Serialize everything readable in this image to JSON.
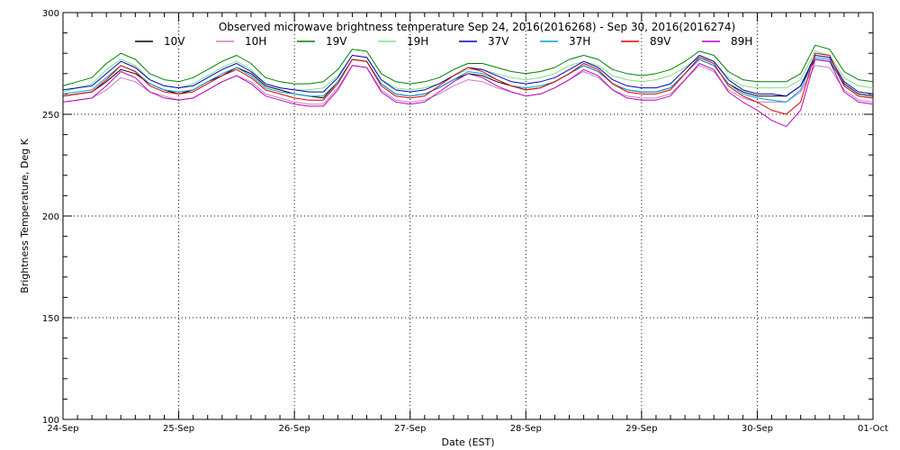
{
  "chart_data": {
    "type": "line",
    "title": "Observed microwave brightness temperature Sep 24, 2016(2016268) - Sep 30, 2016(2016274)",
    "xlabel": "Date (EST)",
    "ylabel": "Brightness Temperature, Deg K",
    "ylim": [
      100,
      300
    ],
    "xlim": [
      0,
      7
    ],
    "x_unit": "days since 24-Sep",
    "yticks": [
      "100",
      "150",
      "200",
      "250",
      "300"
    ],
    "xticks": [
      "24-Sep",
      "25-Sep",
      "26-Sep",
      "27-Sep",
      "28-Sep",
      "29-Sep",
      "30-Sep",
      "01-Oct"
    ],
    "grid": true,
    "legend": "top",
    "x": [
      0,
      0.125,
      0.25,
      0.375,
      0.5,
      0.625,
      0.75,
      0.875,
      1,
      1.125,
      1.25,
      1.375,
      1.5,
      1.625,
      1.75,
      1.875,
      2,
      2.125,
      2.25,
      2.375,
      2.5,
      2.625,
      2.75,
      2.875,
      3,
      3.125,
      3.25,
      3.375,
      3.5,
      3.625,
      3.75,
      3.875,
      4,
      4.125,
      4.25,
      4.375,
      4.5,
      4.625,
      4.75,
      4.875,
      5,
      5.125,
      5.25,
      5.375,
      5.5,
      5.625,
      5.75,
      5.875,
      6,
      6.125,
      6.25,
      6.375,
      6.5,
      6.625,
      6.75,
      6.875,
      7
    ],
    "series": [
      {
        "name": "10V",
        "color": "#000000",
        "values": [
          259,
          260,
          261,
          266,
          272,
          270,
          265,
          262,
          260,
          262,
          266,
          269,
          273,
          270,
          264,
          262,
          260,
          259,
          258,
          266,
          277,
          276,
          265,
          260,
          259,
          260,
          263,
          267,
          270,
          269,
          266,
          264,
          262,
          263,
          266,
          270,
          274,
          271,
          265,
          262,
          261,
          261,
          263,
          270,
          277,
          274,
          265,
          261,
          259,
          259,
          259,
          264,
          277,
          276,
          265,
          260,
          259
        ]
      },
      {
        "name": "10H",
        "color": "#c080c0",
        "values": [
          256,
          257,
          258,
          262,
          268,
          266,
          261,
          259,
          257,
          258,
          262,
          266,
          269,
          266,
          260,
          258,
          256,
          255,
          255,
          263,
          274,
          273,
          262,
          257,
          256,
          257,
          260,
          264,
          267,
          266,
          263,
          261,
          259,
          260,
          263,
          267,
          271,
          268,
          262,
          259,
          258,
          258,
          260,
          267,
          274,
          271,
          262,
          258,
          256,
          256,
          256,
          261,
          274,
          273,
          262,
          257,
          256
        ]
      },
      {
        "name": "19V",
        "color": "#008000",
        "values": [
          264,
          266,
          268,
          275,
          280,
          277,
          270,
          267,
          266,
          268,
          272,
          276,
          279,
          275,
          268,
          266,
          265,
          265,
          266,
          272,
          282,
          281,
          270,
          266,
          265,
          266,
          268,
          272,
          275,
          275,
          273,
          271,
          270,
          271,
          273,
          277,
          279,
          277,
          272,
          270,
          269,
          270,
          272,
          276,
          281,
          279,
          271,
          267,
          266,
          266,
          266,
          270,
          284,
          282,
          271,
          267,
          266
        ]
      },
      {
        "name": "19H",
        "color": "#80e080",
        "values": [
          261,
          263,
          265,
          272,
          277,
          274,
          267,
          264,
          263,
          265,
          269,
          273,
          276,
          272,
          265,
          263,
          262,
          262,
          263,
          269,
          279,
          278,
          267,
          263,
          262,
          263,
          265,
          269,
          272,
          272,
          270,
          268,
          267,
          268,
          270,
          274,
          276,
          274,
          269,
          267,
          266,
          267,
          269,
          273,
          278,
          276,
          268,
          264,
          263,
          263,
          263,
          267,
          281,
          279,
          268,
          264,
          263
        ]
      },
      {
        "name": "37V",
        "color": "#0000c0",
        "values": [
          262,
          263,
          264,
          270,
          276,
          273,
          267,
          264,
          263,
          264,
          268,
          272,
          275,
          271,
          265,
          263,
          262,
          261,
          261,
          268,
          279,
          278,
          267,
          262,
          261,
          262,
          265,
          269,
          273,
          272,
          269,
          266,
          265,
          266,
          268,
          272,
          276,
          273,
          267,
          264,
          263,
          263,
          265,
          272,
          279,
          276,
          267,
          262,
          260,
          260,
          259,
          264,
          279,
          278,
          266,
          261,
          260
        ]
      },
      {
        "name": "37H",
        "color": "#00a0d0",
        "values": [
          260,
          261,
          262,
          268,
          274,
          271,
          265,
          262,
          261,
          262,
          266,
          270,
          273,
          269,
          263,
          261,
          260,
          259,
          259,
          266,
          277,
          276,
          265,
          260,
          259,
          260,
          263,
          267,
          271,
          270,
          267,
          264,
          263,
          264,
          266,
          270,
          274,
          271,
          265,
          262,
          261,
          261,
          263,
          270,
          277,
          274,
          265,
          260,
          258,
          257,
          256,
          262,
          278,
          277,
          264,
          259,
          258
        ]
      },
      {
        "name": "89V",
        "color": "#e00000",
        "values": [
          259,
          260,
          261,
          267,
          274,
          271,
          264,
          261,
          260,
          261,
          265,
          269,
          272,
          268,
          262,
          260,
          258,
          257,
          257,
          265,
          277,
          276,
          264,
          259,
          258,
          259,
          264,
          269,
          273,
          271,
          267,
          264,
          262,
          263,
          266,
          270,
          275,
          272,
          265,
          261,
          260,
          260,
          262,
          270,
          278,
          275,
          264,
          259,
          256,
          252,
          250,
          256,
          280,
          279,
          264,
          259,
          258
        ]
      },
      {
        "name": "89H",
        "color": "#c000c0",
        "values": [
          256,
          257,
          258,
          264,
          271,
          268,
          261,
          258,
          257,
          258,
          262,
          266,
          269,
          265,
          259,
          257,
          255,
          254,
          254,
          262,
          274,
          273,
          261,
          256,
          255,
          256,
          261,
          266,
          270,
          268,
          264,
          261,
          259,
          260,
          263,
          267,
          272,
          269,
          262,
          258,
          257,
          257,
          259,
          267,
          275,
          272,
          261,
          256,
          252,
          247,
          244,
          252,
          277,
          276,
          261,
          256,
          255
        ]
      }
    ]
  }
}
